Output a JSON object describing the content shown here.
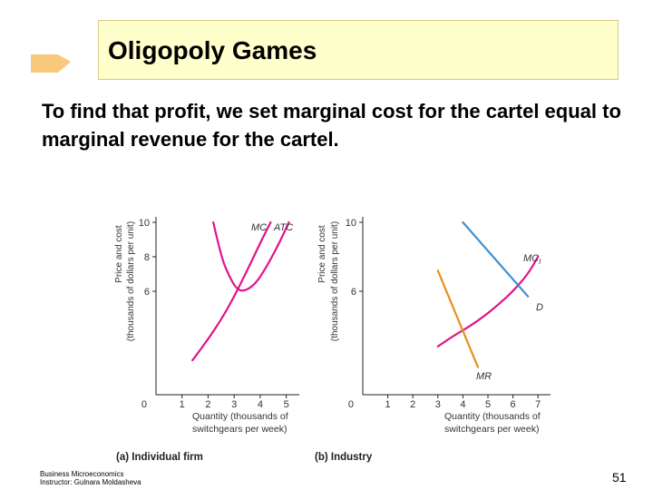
{
  "slide": {
    "title": "Oligopoly Games",
    "subtitle": "To find that profit, we set marginal cost for the cartel equal to marginal revenue for the cartel.",
    "footer_line1": "Business Microeconomics",
    "footer_line2": "Instructor: Gulnara Moldasheva",
    "page_number": "51"
  },
  "colors": {
    "title_bg": "#ffffcc",
    "mc_curve": "#e0148c",
    "atc_curve": "#e0148c",
    "demand_curve": "#3d8fd1",
    "mr_curve": "#e8901a",
    "axis": "#222222",
    "arrow": "#f7c97a"
  },
  "chart_data": [
    {
      "type": "line",
      "caption": "(a) Individual firm",
      "ylabel_line1": "Price and cost",
      "ylabel_line2": "(thousands of dollars per unit)",
      "xlabel_line1": "Quantity (thousands of",
      "xlabel_line2": "switchgears per week)",
      "origin_label": "0",
      "xlim": [
        0,
        5.5
      ],
      "ylim": [
        0,
        10
      ],
      "x_ticks": [
        1,
        2,
        3,
        4,
        5
      ],
      "x_tick_labels": [
        "1",
        "2",
        "3",
        "4",
        "5"
      ],
      "y_ticks": [
        6,
        8,
        10
      ],
      "y_tick_labels": [
        "6",
        "8",
        "10"
      ],
      "series": [
        {
          "name": "MC",
          "x": [
            1.4,
            2.0,
            2.6,
            3.0,
            3.5,
            4.0,
            4.4
          ],
          "y": [
            2.0,
            3.2,
            4.6,
            5.7,
            7.2,
            8.8,
            10.0
          ]
        },
        {
          "name": "ATC",
          "x": [
            2.2,
            2.5,
            2.8,
            3.1,
            3.4,
            3.8,
            4.2,
            4.7,
            5.1
          ],
          "y": [
            10.0,
            8.0,
            6.9,
            6.1,
            6.0,
            6.4,
            7.3,
            8.7,
            10.0
          ]
        }
      ]
    },
    {
      "type": "line",
      "caption": "(b) Industry",
      "ylabel_line1": "Price and cost",
      "ylabel_line2": "(thousands of dollars per unit)",
      "xlabel_line1": "Quantity (thousands of",
      "xlabel_line2": "switchgears per week)",
      "origin_label": "0",
      "xlim": [
        0,
        7.5
      ],
      "ylim": [
        0,
        10
      ],
      "x_ticks": [
        1,
        2,
        3,
        4,
        5,
        6,
        7
      ],
      "x_tick_labels": [
        "1",
        "2",
        "3",
        "4",
        "5",
        "6",
        "7"
      ],
      "y_ticks": [
        6,
        10
      ],
      "y_tick_labels": [
        "6",
        "10"
      ],
      "series": [
        {
          "name": "MC",
          "sub": "I",
          "x": [
            3.0,
            3.6,
            4.2,
            4.8,
            5.4,
            6.0,
            6.6,
            7.0
          ],
          "y": [
            2.8,
            3.4,
            3.9,
            4.5,
            5.2,
            6.0,
            7.0,
            8.0
          ]
        },
        {
          "name": "D",
          "x": [
            4.0,
            6.6
          ],
          "y": [
            10.0,
            5.7
          ]
        },
        {
          "name": "MR",
          "x": [
            3.0,
            4.6
          ],
          "y": [
            7.2,
            1.6
          ]
        }
      ]
    }
  ]
}
